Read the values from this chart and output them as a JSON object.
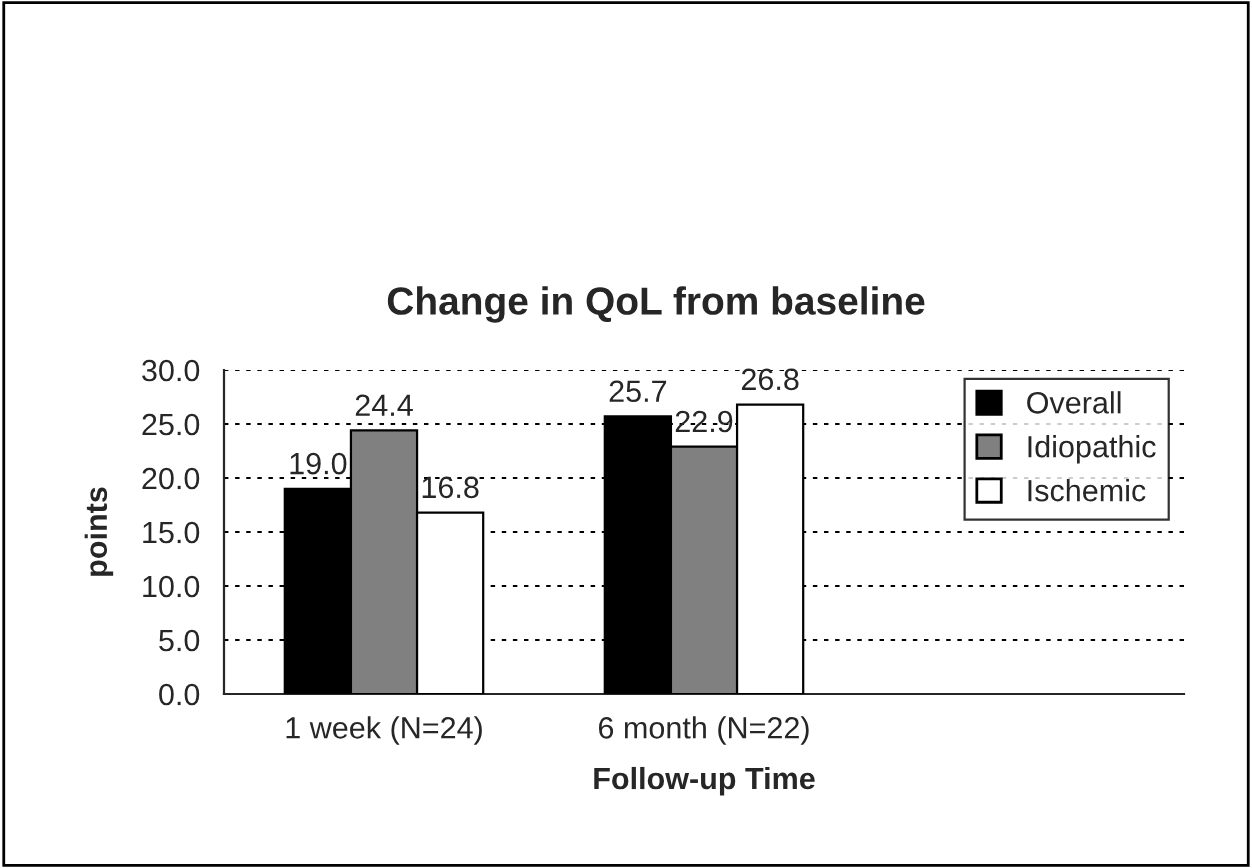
{
  "chart_data": {
    "type": "bar",
    "title": "Change in QoL from baseline",
    "xlabel": "Follow-up Time",
    "ylabel": "points",
    "categories": [
      "1 week (N=24)",
      "6 month (N=22)",
      null
    ],
    "series": [
      {
        "name": "Overall",
        "color": "#000000",
        "values": [
          19.0,
          25.7,
          null
        ],
        "value_labels": [
          "19.0",
          "25.7",
          null
        ]
      },
      {
        "name": "Idiopathic",
        "color": "#808080",
        "values": [
          24.4,
          22.9,
          null
        ],
        "value_labels": [
          "24.4",
          "22.9",
          null
        ]
      },
      {
        "name": "Ischemic",
        "color": "#ffffff",
        "values": [
          16.8,
          26.8,
          null
        ],
        "value_labels": [
          "16.8",
          "26.8",
          null
        ]
      }
    ],
    "ylim": [
      0,
      30
    ],
    "yticks": [
      {
        "value": 0,
        "label": "0.0"
      },
      {
        "value": 5,
        "label": "5.0"
      },
      {
        "value": 10,
        "label": "10.0"
      },
      {
        "value": 15,
        "label": "15.0"
      },
      {
        "value": 20,
        "label": "20.0"
      },
      {
        "value": 25,
        "label": "25.0"
      },
      {
        "value": 30,
        "label": "30.0"
      }
    ],
    "grid": "y",
    "legend": "top right"
  }
}
